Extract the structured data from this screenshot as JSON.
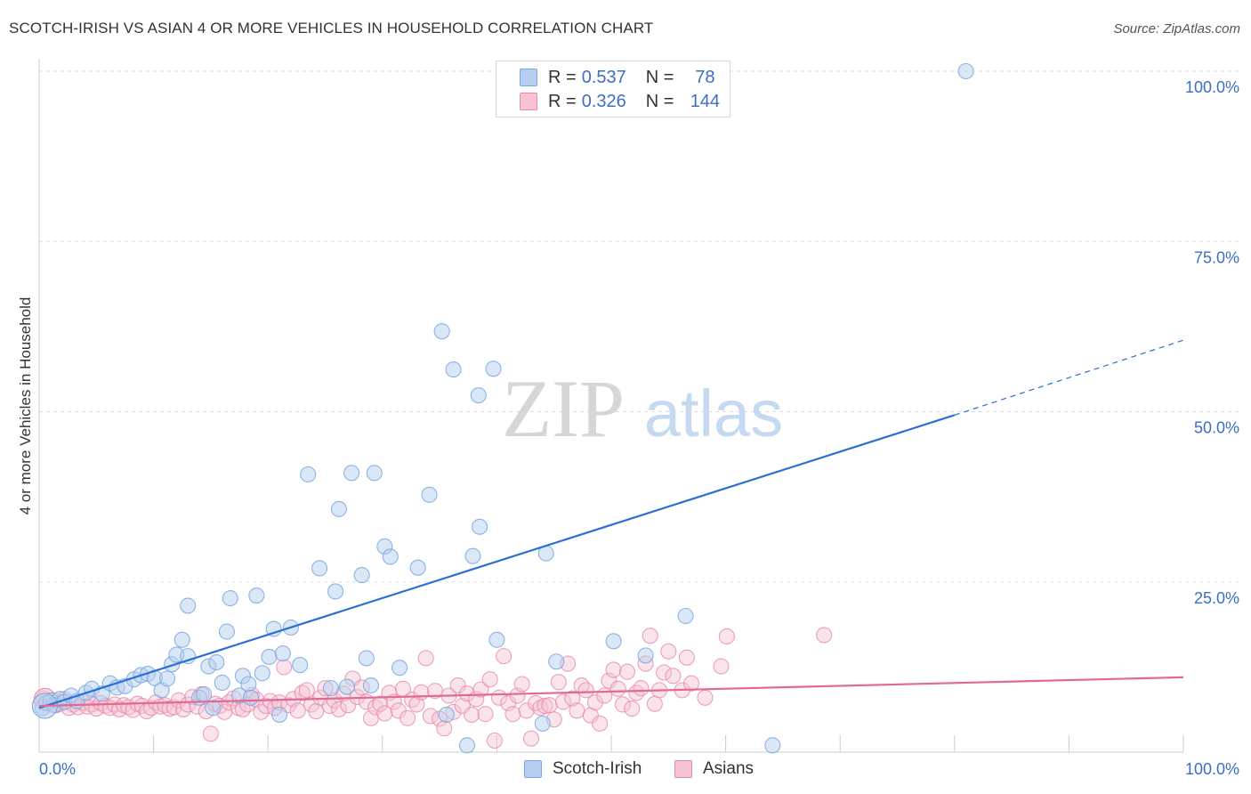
{
  "title": "SCOTCH-IRISH VS ASIAN 4 OR MORE VEHICLES IN HOUSEHOLD CORRELATION CHART",
  "source": "Source: ZipAtlas.com",
  "watermark": {
    "zip": "ZIP",
    "atlas": "atlas"
  },
  "legend": {
    "rows": [
      {
        "r_label": "R =",
        "r_value": "0.537",
        "n_label": "N =",
        "n_value": "78"
      },
      {
        "r_label": "R =",
        "r_value": "0.326",
        "n_label": "N =",
        "n_value": "144"
      }
    ]
  },
  "bottom_legend": {
    "series1": "Scotch-Irish",
    "series2": "Asians"
  },
  "chart_data": {
    "type": "scatter",
    "xlabel": "",
    "ylabel": "4 or more Vehicles in Household",
    "xlim": [
      0,
      100
    ],
    "ylim": [
      0,
      100
    ],
    "x_tick_labels": [
      "0.0%",
      "100.0%"
    ],
    "y_tick_labels": [
      "100.0%",
      "75.0%",
      "50.0%",
      "25.0%"
    ],
    "y_ticks": [
      100,
      75,
      50,
      25
    ],
    "grid": "horizontal dashed",
    "legend_position": "top-center",
    "colors": {
      "series1": "#7aa7e0",
      "series1_fill": "#b6cff0",
      "series1_line": "#2a6fd4",
      "series2": "#e88aab",
      "series2_fill": "#f5c3d4",
      "series2_line": "#e06a93",
      "tick_label": "#3a6fc4",
      "grid": "#dddddd"
    },
    "series": [
      {
        "name": "Scotch-Irish",
        "trend": {
          "x0": 0,
          "y0": 6.5,
          "x1": 80,
          "y1": 49.5,
          "x_dash_end": 100,
          "y_dash_end": 60.5
        },
        "points": [
          [
            0.3,
            6.5
          ],
          [
            0.6,
            7.2
          ],
          [
            1.0,
            7.6
          ],
          [
            1.3,
            6.9
          ],
          [
            1.8,
            7.8
          ],
          [
            2.2,
            7.4
          ],
          [
            2.8,
            8.3
          ],
          [
            3.3,
            7.5
          ],
          [
            4.1,
            8.7
          ],
          [
            4.6,
            9.3
          ],
          [
            5.5,
            8.6
          ],
          [
            6.2,
            10.1
          ],
          [
            6.8,
            9.5
          ],
          [
            7.5,
            9.7
          ],
          [
            8.3,
            10.7
          ],
          [
            8.9,
            11.3
          ],
          [
            9.5,
            11.5
          ],
          [
            10.1,
            10.9
          ],
          [
            10.7,
            9.1
          ],
          [
            11.2,
            10.8
          ],
          [
            11.6,
            12.9
          ],
          [
            12.0,
            14.3
          ],
          [
            12.5,
            16.5
          ],
          [
            13.0,
            14.1
          ],
          [
            13.0,
            21.5
          ],
          [
            14.0,
            8.0
          ],
          [
            14.4,
            8.5
          ],
          [
            14.8,
            12.6
          ],
          [
            15.2,
            6.5
          ],
          [
            15.5,
            13.2
          ],
          [
            16.0,
            10.2
          ],
          [
            16.4,
            17.7
          ],
          [
            16.7,
            22.6
          ],
          [
            17.5,
            8.3
          ],
          [
            17.8,
            11.2
          ],
          [
            18.3,
            10.0
          ],
          [
            18.5,
            8.0
          ],
          [
            19.0,
            23.0
          ],
          [
            19.5,
            11.6
          ],
          [
            20.1,
            14.0
          ],
          [
            20.5,
            18.1
          ],
          [
            21.0,
            5.5
          ],
          [
            21.3,
            14.5
          ],
          [
            22.0,
            18.3
          ],
          [
            22.8,
            12.8
          ],
          [
            23.5,
            40.8
          ],
          [
            24.5,
            27.0
          ],
          [
            25.5,
            9.4
          ],
          [
            25.9,
            23.6
          ],
          [
            26.2,
            35.7
          ],
          [
            26.9,
            9.6
          ],
          [
            27.3,
            41.0
          ],
          [
            28.2,
            26.0
          ],
          [
            28.6,
            13.8
          ],
          [
            29.0,
            9.8
          ],
          [
            29.3,
            41.0
          ],
          [
            30.2,
            30.2
          ],
          [
            30.7,
            28.7
          ],
          [
            31.5,
            12.4
          ],
          [
            33.1,
            27.1
          ],
          [
            34.1,
            37.8
          ],
          [
            35.2,
            61.8
          ],
          [
            35.6,
            5.5
          ],
          [
            36.2,
            56.2
          ],
          [
            37.4,
            1.0
          ],
          [
            37.9,
            28.8
          ],
          [
            38.4,
            52.4
          ],
          [
            38.5,
            33.1
          ],
          [
            39.7,
            56.3
          ],
          [
            40.0,
            16.5
          ],
          [
            44.0,
            4.2
          ],
          [
            44.3,
            29.2
          ],
          [
            45.2,
            13.3
          ],
          [
            50.2,
            16.3
          ],
          [
            53.0,
            14.2
          ],
          [
            56.5,
            20.0
          ],
          [
            64.1,
            1.0
          ],
          [
            81.0,
            100.0
          ]
        ]
      },
      {
        "name": "Asians",
        "trend": {
          "x0": 0,
          "y0": 6.8,
          "x1": 100,
          "y1": 11.0
        },
        "points": [
          [
            0.4,
            7.9
          ],
          [
            0.8,
            7.3
          ],
          [
            1.2,
            7.6
          ],
          [
            1.5,
            6.9
          ],
          [
            1.8,
            7.1
          ],
          [
            2.2,
            7.8
          ],
          [
            2.6,
            6.5
          ],
          [
            3.0,
            7.0
          ],
          [
            3.4,
            6.6
          ],
          [
            3.8,
            7.3
          ],
          [
            4.2,
            6.7
          ],
          [
            4.6,
            7.0
          ],
          [
            5.0,
            6.4
          ],
          [
            5.4,
            7.2
          ],
          [
            5.8,
            6.8
          ],
          [
            6.2,
            6.5
          ],
          [
            6.6,
            7.0
          ],
          [
            7.0,
            6.3
          ],
          [
            7.4,
            6.9
          ],
          [
            7.8,
            6.6
          ],
          [
            8.2,
            6.2
          ],
          [
            8.6,
            7.1
          ],
          [
            9.0,
            6.8
          ],
          [
            9.4,
            6.0
          ],
          [
            9.8,
            6.5
          ],
          [
            10.2,
            7.3
          ],
          [
            10.6,
            6.7
          ],
          [
            11.0,
            6.9
          ],
          [
            11.4,
            6.4
          ],
          [
            11.8,
            6.6
          ],
          [
            12.2,
            7.6
          ],
          [
            12.6,
            6.3
          ],
          [
            13.0,
            7.0
          ],
          [
            13.4,
            8.1
          ],
          [
            13.8,
            6.7
          ],
          [
            14.2,
            8.5
          ],
          [
            14.6,
            6.0
          ],
          [
            15.0,
            2.7
          ],
          [
            15.4,
            7.1
          ],
          [
            15.8,
            6.8
          ],
          [
            16.2,
            5.9
          ],
          [
            16.6,
            7.3
          ],
          [
            17.0,
            7.9
          ],
          [
            17.4,
            6.5
          ],
          [
            17.8,
            6.3
          ],
          [
            18.2,
            7.0
          ],
          [
            18.6,
            8.4
          ],
          [
            19.0,
            7.7
          ],
          [
            19.4,
            5.9
          ],
          [
            19.8,
            6.8
          ],
          [
            20.2,
            7.5
          ],
          [
            20.6,
            6.5
          ],
          [
            21.0,
            7.3
          ],
          [
            21.4,
            12.5
          ],
          [
            21.8,
            6.9
          ],
          [
            22.2,
            7.8
          ],
          [
            22.6,
            6.1
          ],
          [
            23.0,
            8.7
          ],
          [
            23.4,
            9.1
          ],
          [
            23.8,
            7.0
          ],
          [
            24.2,
            6.0
          ],
          [
            24.6,
            8.0
          ],
          [
            25.0,
            9.4
          ],
          [
            25.4,
            6.8
          ],
          [
            25.8,
            7.6
          ],
          [
            26.2,
            6.3
          ],
          [
            26.6,
            8.6
          ],
          [
            27.0,
            6.9
          ],
          [
            27.4,
            10.8
          ],
          [
            27.8,
            8.1
          ],
          [
            28.2,
            9.5
          ],
          [
            28.6,
            7.4
          ],
          [
            29.0,
            5.0
          ],
          [
            29.4,
            6.6
          ],
          [
            29.8,
            7.1
          ],
          [
            30.2,
            5.7
          ],
          [
            30.6,
            8.7
          ],
          [
            31.0,
            7.4
          ],
          [
            31.4,
            6.1
          ],
          [
            31.8,
            9.3
          ],
          [
            32.2,
            5.0
          ],
          [
            32.6,
            7.7
          ],
          [
            33.0,
            7.0
          ],
          [
            33.4,
            8.8
          ],
          [
            33.8,
            13.8
          ],
          [
            34.2,
            5.3
          ],
          [
            34.6,
            9.0
          ],
          [
            35.0,
            4.9
          ],
          [
            35.4,
            3.5
          ],
          [
            35.8,
            8.3
          ],
          [
            36.2,
            5.9
          ],
          [
            36.6,
            9.8
          ],
          [
            37.0,
            6.8
          ],
          [
            37.4,
            8.6
          ],
          [
            37.8,
            5.5
          ],
          [
            38.2,
            7.8
          ],
          [
            38.6,
            9.2
          ],
          [
            39.0,
            5.6
          ],
          [
            39.4,
            10.7
          ],
          [
            39.8,
            1.7
          ],
          [
            40.2,
            8.0
          ],
          [
            40.6,
            14.1
          ],
          [
            41.0,
            7.2
          ],
          [
            41.4,
            5.6
          ],
          [
            41.8,
            8.3
          ],
          [
            42.2,
            10.0
          ],
          [
            42.6,
            6.1
          ],
          [
            43.0,
            2.0
          ],
          [
            43.4,
            7.2
          ],
          [
            43.8,
            6.5
          ],
          [
            44.2,
            6.8
          ],
          [
            44.6,
            6.9
          ],
          [
            45.0,
            4.8
          ],
          [
            45.4,
            10.3
          ],
          [
            45.8,
            7.4
          ],
          [
            46.2,
            13.0
          ],
          [
            46.6,
            7.9
          ],
          [
            47.0,
            6.1
          ],
          [
            47.4,
            9.8
          ],
          [
            47.8,
            9.1
          ],
          [
            48.2,
            5.4
          ],
          [
            48.6,
            7.3
          ],
          [
            49.0,
            4.2
          ],
          [
            49.4,
            8.3
          ],
          [
            49.8,
            10.5
          ],
          [
            50.2,
            12.1
          ],
          [
            50.6,
            9.3
          ],
          [
            51.0,
            7.0
          ],
          [
            51.4,
            11.8
          ],
          [
            51.8,
            6.4
          ],
          [
            52.2,
            8.7
          ],
          [
            52.6,
            9.4
          ],
          [
            53.0,
            13.0
          ],
          [
            53.4,
            17.1
          ],
          [
            53.8,
            7.1
          ],
          [
            54.2,
            9.1
          ],
          [
            54.6,
            11.7
          ],
          [
            55.0,
            14.8
          ],
          [
            55.4,
            11.2
          ],
          [
            56.2,
            9.1
          ],
          [
            56.6,
            13.9
          ],
          [
            57.0,
            10.1
          ],
          [
            58.2,
            8.0
          ],
          [
            59.6,
            12.6
          ],
          [
            60.1,
            17.0
          ],
          [
            68.6,
            17.2
          ]
        ]
      }
    ]
  }
}
